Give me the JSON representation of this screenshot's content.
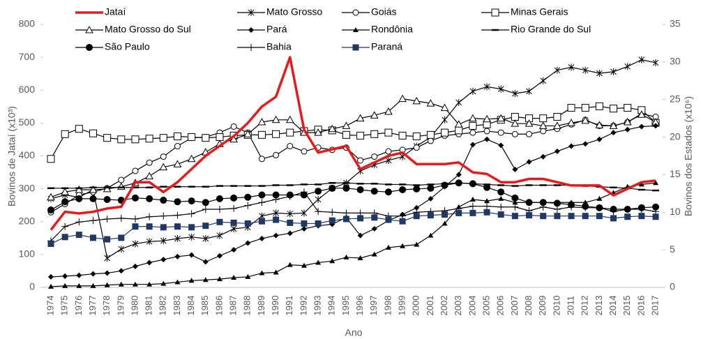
{
  "chart_data": {
    "type": "line",
    "ylabel": "Bovinos de Jataí (x10³)",
    "y2label": "Bovinos dos Estados (x10⁶)",
    "xlabel": "Ano",
    "categories": [
      "1974",
      "1975",
      "1976",
      "1977",
      "1978",
      "1979",
      "1980",
      "1981",
      "1982",
      "1983",
      "1984",
      "1985",
      "1986",
      "1987",
      "1988",
      "1989",
      "1990",
      "1991",
      "1992",
      "1993",
      "1994",
      "1995",
      "1996",
      "1997",
      "1998",
      "1999",
      "2000",
      "2001",
      "2002",
      "2003",
      "2004",
      "2005",
      "2006",
      "2007",
      "2008",
      "2009",
      "2010",
      "2011",
      "2012",
      "2013",
      "2014",
      "2015",
      "2016",
      "2017"
    ],
    "ylim": [
      0,
      800
    ],
    "yticks": [
      0,
      100,
      200,
      300,
      400,
      500,
      600,
      700,
      800
    ],
    "y2lim": [
      0,
      35
    ],
    "y2ticks": [
      0,
      5,
      10,
      15,
      20,
      25,
      30,
      35
    ],
    "series": [
      {
        "name": "Jataí",
        "color": "#e8191b",
        "marker": "none",
        "axis": "y",
        "values": [
          175,
          230,
          225,
          230,
          240,
          245,
          320,
          320,
          290,
          320,
          360,
          400,
          430,
          460,
          500,
          550,
          580,
          700,
          480,
          410,
          420,
          430,
          360,
          380,
          400,
          410,
          375,
          375,
          375,
          380,
          350,
          345,
          320,
          320,
          330,
          330,
          320,
          310,
          310,
          310,
          280,
          300,
          320,
          325
        ]
      },
      {
        "name": "Mato Grosso",
        "color": "#000000",
        "marker": "asterisk",
        "axis": "y2",
        "values": [
          11.8,
          12.3,
          12,
          13,
          3.9,
          5.1,
          5.8,
          6.1,
          6.2,
          6.5,
          6.7,
          6.5,
          6.9,
          7.8,
          8,
          9.5,
          9.9,
          9.8,
          9.9,
          11.7,
          13.2,
          13.9,
          15.5,
          16.3,
          16.9,
          17.4,
          18.8,
          20,
          22.3,
          24.6,
          26.1,
          26.7,
          26.4,
          25.8,
          26.1,
          27.5,
          28.9,
          29.3,
          28.9,
          28.5,
          28.7,
          29.4,
          30.3,
          29.9
        ]
      },
      {
        "name": "Goiás",
        "color": "#000000",
        "marker": "circle-open",
        "axis": "y2",
        "values": [
          10,
          11.1,
          12.3,
          12.7,
          13.2,
          14.3,
          15.5,
          16.6,
          17.4,
          18.8,
          19.9,
          20,
          20.6,
          21.4,
          20.6,
          17.1,
          17.6,
          18.8,
          18.1,
          18.6,
          18.3,
          18.6,
          16.9,
          17.4,
          18.1,
          18.3,
          18.6,
          19.5,
          20.2,
          20.4,
          20.6,
          20.8,
          20.6,
          20.4,
          20.4,
          20.8,
          21.1,
          21.7,
          22.3,
          21.5,
          21.5,
          22,
          23.1,
          22.7
        ]
      },
      {
        "name": "Minas Gerais",
        "color": "#000000",
        "marker": "square-open",
        "axis": "y2",
        "values": [
          17.1,
          20.4,
          21.1,
          20.5,
          19.9,
          19.7,
          19.7,
          19.8,
          19.9,
          20.1,
          20,
          19.9,
          20,
          20.2,
          20.3,
          20.3,
          20.4,
          20.6,
          20.8,
          21,
          20.9,
          20.3,
          20.2,
          20.4,
          20.6,
          20.2,
          20.1,
          20.3,
          20.6,
          20.9,
          21.5,
          21.7,
          22.3,
          22.7,
          22.5,
          22.5,
          22.7,
          23.9,
          23.9,
          24.1,
          23.8,
          23.9,
          23.6,
          21.9
        ]
      },
      {
        "name": "Mato Grosso do Sul",
        "color": "#000000",
        "marker": "triangle-open",
        "axis": "y2",
        "values": [
          12,
          12.7,
          13,
          13,
          13.1,
          13.4,
          13.9,
          14.8,
          16,
          16.4,
          17.1,
          18,
          19.1,
          19.7,
          20.4,
          22,
          22.3,
          22.3,
          20.6,
          20.6,
          21.1,
          21.5,
          22.5,
          22.9,
          23.4,
          25.1,
          24.8,
          24.5,
          23.9,
          21.7,
          22.5,
          22.4,
          22.5,
          21.8,
          21.8,
          21.5,
          21.5,
          21.9,
          22.2,
          21.6,
          21.5,
          22,
          23,
          22
        ]
      },
      {
        "name": "Pará",
        "color": "#000000",
        "marker": "diamond",
        "axis": "y2",
        "values": [
          1.4,
          1.5,
          1.6,
          1.8,
          1.9,
          2.2,
          2.8,
          3.3,
          3.7,
          4.1,
          4.3,
          3.4,
          4.2,
          5,
          5.9,
          6.5,
          6.9,
          7.2,
          7.8,
          8.2,
          8.4,
          9.3,
          6.9,
          7.8,
          8.9,
          9.7,
          10.6,
          11.8,
          13.4,
          15,
          19,
          19.7,
          18.9,
          15.7,
          16.7,
          17.4,
          18.1,
          18.8,
          19.1,
          19.7,
          20.6,
          21,
          21.4,
          21.5
        ]
      },
      {
        "name": "Rondônia",
        "color": "#000000",
        "marker": "triangle",
        "axis": "y2",
        "values": [
          0.1,
          0.2,
          0.2,
          0.2,
          0.3,
          0.4,
          0.4,
          0.4,
          0.5,
          0.7,
          0.9,
          1,
          1.1,
          1.3,
          1.4,
          1.9,
          2,
          3,
          2.9,
          3.3,
          3.5,
          4,
          3.9,
          4.4,
          5.3,
          5.5,
          5.7,
          6.9,
          8.5,
          10.7,
          11.7,
          11.5,
          11.8,
          11.3,
          11.3,
          11.3,
          11.3,
          11.3,
          11.3,
          11.8,
          12.6,
          13.4,
          13.7,
          13.9
        ]
      },
      {
        "name": "Rio Grande do Sul",
        "color": "#000000",
        "marker": "dash",
        "axis": "y2",
        "values": [
          13.2,
          13.2,
          13.2,
          13.3,
          13.3,
          13.3,
          13.3,
          13.3,
          13.4,
          13.4,
          13.4,
          13.4,
          13.5,
          13.5,
          13.5,
          13.5,
          13.6,
          13.6,
          13.7,
          13.7,
          13.9,
          13.9,
          13.8,
          13.8,
          13.7,
          13.7,
          13.6,
          13.7,
          13.8,
          13.9,
          13.8,
          13.7,
          13.6,
          13.5,
          13.6,
          13.6,
          13.6,
          13.6,
          13.5,
          13.4,
          13.3,
          13.2,
          13,
          12.9
        ]
      },
      {
        "name": "São Paulo",
        "color": "#000000",
        "marker": "circle",
        "axis": "y2",
        "values": [
          10.3,
          11.4,
          11.8,
          11.8,
          11.7,
          11.6,
          11.9,
          11.8,
          11.6,
          11.4,
          11.5,
          11.3,
          11.8,
          11.9,
          12,
          12.3,
          12.3,
          12.3,
          12.3,
          12.8,
          13.2,
          13.2,
          13,
          12.8,
          12.7,
          13,
          13.1,
          13.2,
          13.6,
          13.9,
          13.8,
          13.3,
          12.7,
          11.9,
          11.3,
          11.3,
          11.2,
          11,
          10.8,
          10.6,
          10.4,
          10.4,
          10.6,
          10.7
        ]
      },
      {
        "name": "Bahia",
        "color": "#000000",
        "marker": "plus",
        "axis": "y2",
        "values": [
          6.2,
          8.1,
          8.7,
          8.9,
          9.1,
          9.2,
          9.1,
          9.4,
          9.5,
          9.6,
          9.8,
          10.4,
          10.4,
          10.5,
          10.9,
          11.3,
          11.7,
          12.1,
          12.7,
          10.1,
          10,
          9.9,
          9.9,
          9.9,
          9.5,
          9.5,
          10,
          10.1,
          10.2,
          10.5,
          10.8,
          10.8,
          10.7,
          10.7,
          10.2,
          10.7,
          10.4,
          10.7,
          10.6,
          10.6,
          10.1,
          10.4,
          10.4,
          10.1
        ]
      },
      {
        "name": "Paraná",
        "color": "#1f3864",
        "marker": "square",
        "axis": "y2",
        "values": [
          5.8,
          6.7,
          7,
          6.6,
          6.4,
          6.6,
          8.1,
          8.1,
          8,
          8.1,
          8,
          8.2,
          8.7,
          8.6,
          8.5,
          8.8,
          9,
          8.6,
          8.5,
          8.5,
          8.9,
          9.1,
          9.2,
          9.3,
          9,
          8.8,
          9.5,
          9.6,
          9.7,
          9.9,
          9.9,
          10,
          9.7,
          9.5,
          9.6,
          9.5,
          9.5,
          9.5,
          9.5,
          9.5,
          9.2,
          9.4,
          9.5,
          9.4
        ]
      }
    ]
  }
}
